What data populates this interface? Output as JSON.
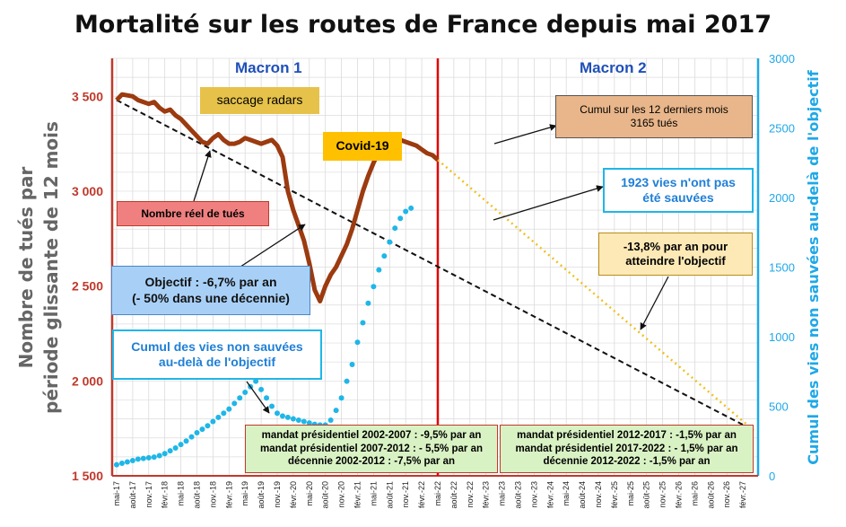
{
  "title": "Mortalité sur les routes de France depuis mai 2017",
  "annotations": {
    "macron1": "Macron 1",
    "macron2": "Macron 2",
    "saccage_radars": "saccage radars",
    "covid": "Covid-19",
    "nombre_reel": "Nombre réel de tués",
    "cumul12_line1": "Cumul sur les 12 derniers mois",
    "cumul12_line2": "3165 tués",
    "vies_1923_line1": "1923 vies n'ont pas",
    "vies_1923_line2": "été sauvées",
    "objectif_line1": "Objectif : -6,7% par an",
    "objectif_line2": "(- 50% dans une décennie)",
    "cumul_vies_line1": "Cumul des vies non sauvées",
    "cumul_vies_line2": "au-delà de l'objectif",
    "taux_138_line1": "-13,8% par an pour",
    "taux_138_line2": "atteindre l'objectif",
    "mandat_left_1": "mandat présidentiel 2002-2007 : -9,5% par an",
    "mandat_left_2": "mandat présidentiel 2007-2012 : - 5,5% par an",
    "mandat_left_3": "décennie 2002-2012 : -7,5% par an",
    "mandat_right_1": "mandat présidentiel 2012-2017 : -1,5% par an",
    "mandat_right_2": "mandat présidentiel 2017-2022 : - 1,5% par an",
    "mandat_right_3": "décennie 2012-2022 : -1,5% par an"
  },
  "colors": {
    "real_line": "#9c3a10",
    "objective_line": "#111111",
    "cumul_dots": "#1fb6e8",
    "projection_dots": "#f0c020",
    "separator": "#e00000",
    "left_axis": "#c0392b",
    "right_axis": "#1fa8e8",
    "left_axis_title": "#666666"
  },
  "chart_data": {
    "type": "line",
    "ylabel": "Nombre de tués par période glissante de 12 mois",
    "y2label": "Cumul des vies non sauvées au-delà de l'objectif",
    "ylim": [
      1500,
      3700
    ],
    "y2lim": [
      0,
      3000
    ],
    "yticks": [
      1500,
      2000,
      2500,
      3000,
      3500
    ],
    "ytick_labels": [
      "1 500",
      "2 000",
      "2 500",
      "3 000",
      "3 500"
    ],
    "y2ticks": [
      0,
      500,
      1000,
      1500,
      2000,
      2500,
      3000
    ],
    "x_tick_labels": [
      "mai-17",
      "août-17",
      "nov.-17",
      "févr.-18",
      "mai-18",
      "août-18",
      "nov.-18",
      "févr.-19",
      "mai-19",
      "août-19",
      "nov.-19",
      "févr.-20",
      "mai-20",
      "août-20",
      "nov.-20",
      "févr.-21",
      "mai-21",
      "août-21",
      "nov.-21",
      "févr.-22",
      "mai-22",
      "août-22",
      "nov.-22",
      "févr.-23",
      "mai-23",
      "août-23",
      "nov.-23",
      "févr.-24",
      "mai-24",
      "août-24",
      "nov.-24",
      "févr.-25",
      "mai-25",
      "août-25",
      "nov.-25",
      "févr.-26",
      "mai-26",
      "août-26",
      "nov.-26",
      "févr.-27"
    ],
    "separator_label": "mai-22",
    "series": [
      {
        "name": "Nombre réel de tués",
        "axis": "left",
        "values": [
          3480,
          3510,
          3505,
          3500,
          3480,
          3470,
          3460,
          3470,
          3440,
          3420,
          3430,
          3400,
          3380,
          3350,
          3320,
          3290,
          3260,
          3250,
          3280,
          3300,
          3270,
          3250,
          3250,
          3260,
          3280,
          3270,
          3260,
          3250,
          3260,
          3270,
          3240,
          3180,
          3000,
          2900,
          2820,
          2740,
          2620,
          2480,
          2420,
          2500,
          2560,
          2600,
          2660,
          2720,
          2800,
          2900,
          3000,
          3080,
          3150,
          3210,
          3230,
          3260,
          3270,
          3270,
          3260,
          3250,
          3240,
          3220,
          3200,
          3190,
          3165
        ]
      },
      {
        "name": "Objectif : -6,7% par an",
        "axis": "left",
        "start": 3480,
        "end_index": 119,
        "end": 1740
      },
      {
        "name": "Cumul des vies non sauvées au-delà de l'objectif",
        "axis": "right",
        "values": [
          80,
          90,
          100,
          110,
          120,
          125,
          130,
          135,
          145,
          160,
          180,
          200,
          225,
          250,
          280,
          310,
          335,
          360,
          390,
          420,
          450,
          480,
          520,
          560,
          600,
          640,
          680,
          620,
          560,
          500,
          450,
          430,
          420,
          410,
          400,
          390,
          380,
          370,
          365,
          365,
          400,
          470,
          560,
          680,
          800,
          960,
          1100,
          1240,
          1360,
          1480,
          1580,
          1680,
          1780,
          1850,
          1900,
          1923
        ]
      },
      {
        "name": "-13,8% par an pour atteindre l'objectif",
        "axis": "left",
        "start_index": 60,
        "start": 3165,
        "end_index": 119,
        "end": 1740
      }
    ]
  }
}
